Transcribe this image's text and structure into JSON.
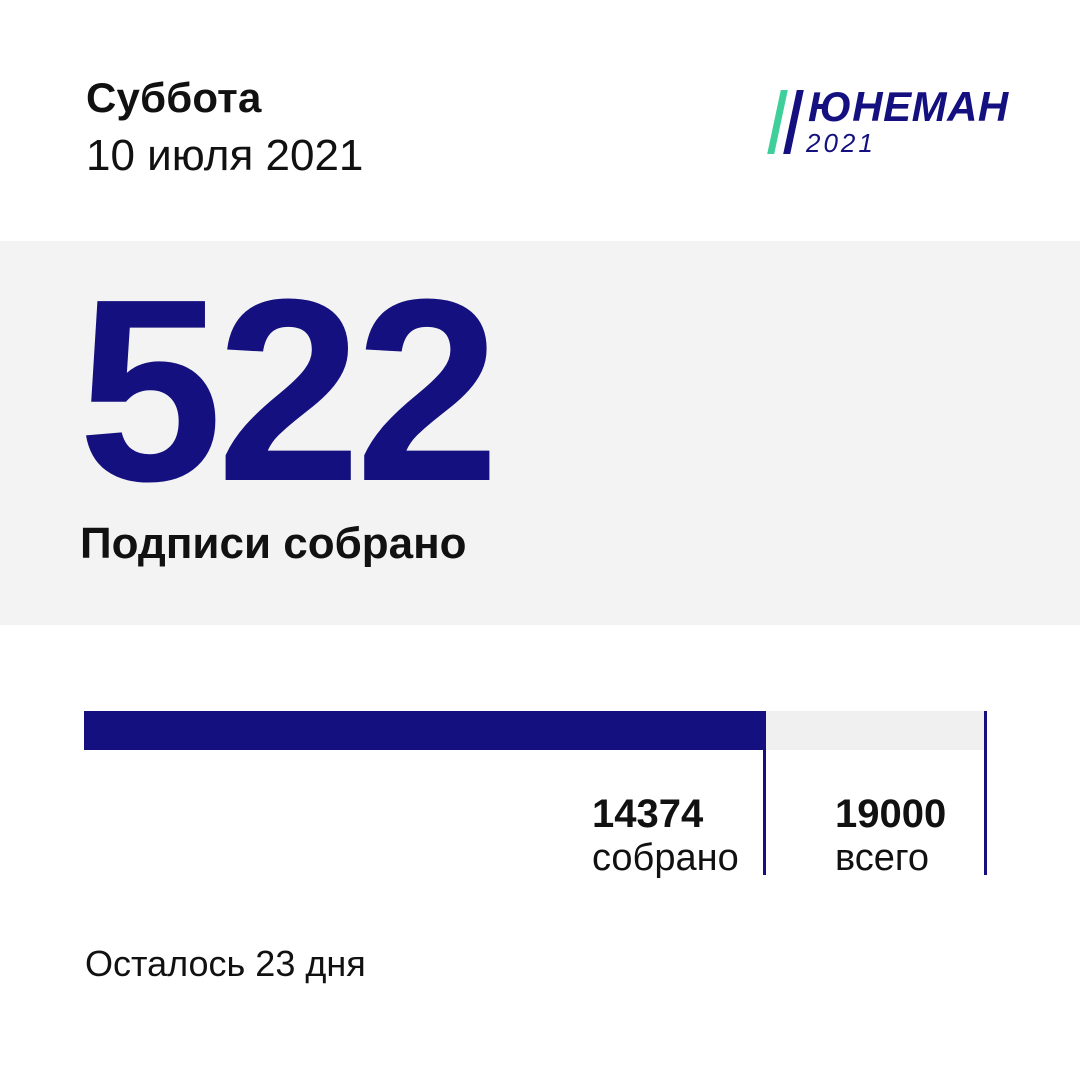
{
  "header": {
    "weekday": "Суббота",
    "date": "10 июля 2021"
  },
  "logo": {
    "title": "ЮНЕМАН",
    "year": "2021",
    "stripe_colors": [
      "#3ecf9a",
      "#14107f"
    ]
  },
  "hero": {
    "number": "522",
    "caption": "Подписи собрано"
  },
  "progress": {
    "collected_value": "14374",
    "collected_label": "собрано",
    "total_value": "19000",
    "total_label": "всего",
    "collected": 14374,
    "total": 19000
  },
  "footer": {
    "remaining": "Осталось 23 дня"
  },
  "colors": {
    "accent": "#14107f",
    "hero_background": "#f3f3f3",
    "track": "#f0f0f0",
    "text": "#111111"
  }
}
